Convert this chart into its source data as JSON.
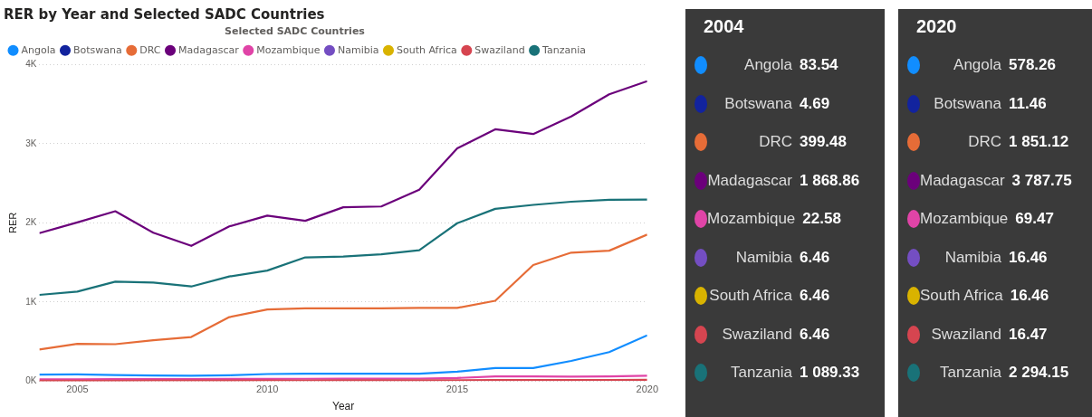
{
  "chart_data": [
    {
      "type": "line",
      "title": "RER by Year and Selected SADC Countries",
      "legend_title": "Selected SADC Countries",
      "legend": "top left",
      "xlabel": "Year",
      "ylabel": "RER",
      "grid": "y",
      "line_style": "solid",
      "marker": "none",
      "x": [
        2004,
        2005,
        2006,
        2007,
        2008,
        2009,
        2010,
        2011,
        2012,
        2013,
        2014,
        2015,
        2016,
        2017,
        2018,
        2019,
        2020
      ],
      "xlim": [
        2004,
        2020
      ],
      "xticks": [
        2005,
        2010,
        2015,
        2020
      ],
      "ylim": [
        0,
        4000
      ],
      "yticks": [
        {
          "value": 0,
          "label": "0K"
        },
        {
          "value": 1000,
          "label": "1K"
        },
        {
          "value": 2000,
          "label": "2K"
        },
        {
          "value": 3000,
          "label": "3K"
        },
        {
          "value": 4000,
          "label": "4K"
        }
      ],
      "series": [
        {
          "name": "Angola",
          "color": "#118dff",
          "values": [
            83.54,
            85,
            78,
            72,
            68,
            75,
            90,
            95,
            95,
            95,
            95,
            120,
            166,
            166,
            256,
            367,
            578.26
          ]
        },
        {
          "name": "Botswana",
          "color": "#12239e",
          "values": [
            null,
            null,
            null,
            null,
            null,
            null,
            null,
            null,
            null,
            null,
            null,
            null,
            null,
            null,
            null,
            null,
            null
          ]
        },
        {
          "name": "DRC",
          "color": "#e66c37",
          "values": [
            399.48,
            472,
            467,
            518,
            558,
            809,
            905,
            920,
            920,
            920,
            925,
            925,
            1015,
            1467,
            1623,
            1648,
            1851.12
          ]
        },
        {
          "name": "Madagascar",
          "color": "#6b007b",
          "values": [
            1868.86,
            2005,
            2146,
            1874,
            1709,
            1955,
            2090,
            2025,
            2196,
            2206,
            2417,
            2940,
            3181,
            3121,
            3342,
            3623,
            3787.75
          ]
        },
        {
          "name": "Mozambique",
          "color": "#e044a7",
          "values": [
            22.58,
            24,
            25,
            26,
            27,
            28,
            29,
            30,
            31,
            32,
            33,
            40,
            60,
            60,
            58,
            60,
            69.47
          ]
        },
        {
          "name": "Namibia",
          "color": "#744ec2",
          "values": [
            null,
            null,
            null,
            null,
            null,
            null,
            null,
            null,
            null,
            null,
            null,
            null,
            null,
            null,
            null,
            null,
            null
          ]
        },
        {
          "name": "South Africa",
          "color": "#d9b300",
          "values": [
            null,
            null,
            null,
            null,
            null,
            null,
            null,
            null,
            null,
            null,
            null,
            null,
            null,
            null,
            null,
            null,
            null
          ]
        },
        {
          "name": "Swaziland",
          "color": "#d64550",
          "values": [
            6.46,
            7,
            7,
            8,
            8,
            9,
            10,
            10,
            11,
            11,
            12,
            13,
            14,
            15,
            15,
            16,
            16.47
          ]
        },
        {
          "name": "Tanzania",
          "color": "#197278",
          "values": [
            1089.33,
            1131,
            1256,
            1246,
            1196,
            1322,
            1397,
            1563,
            1573,
            1603,
            1653,
            1995,
            2176,
            2226,
            2266,
            2291,
            2294.15
          ]
        }
      ]
    },
    {
      "type": "other",
      "title": "2004",
      "categories": [
        "Angola",
        "Botswana",
        "DRC",
        "Madagascar",
        "Mozambique",
        "Namibia",
        "South Africa",
        "Swaziland",
        "Tanzania"
      ],
      "values": [
        83.54,
        4.69,
        399.48,
        1868.86,
        22.58,
        6.46,
        6.46,
        6.46,
        1089.33
      ],
      "data_labels": true
    },
    {
      "type": "other",
      "title": "2020",
      "categories": [
        "Angola",
        "Botswana",
        "DRC",
        "Madagascar",
        "Mozambique",
        "Namibia",
        "South Africa",
        "Swaziland",
        "Tanzania"
      ],
      "values": [
        578.26,
        11.46,
        1851.12,
        3787.75,
        69.47,
        16.46,
        16.46,
        16.47,
        2294.15
      ],
      "data_labels": true
    }
  ]
}
